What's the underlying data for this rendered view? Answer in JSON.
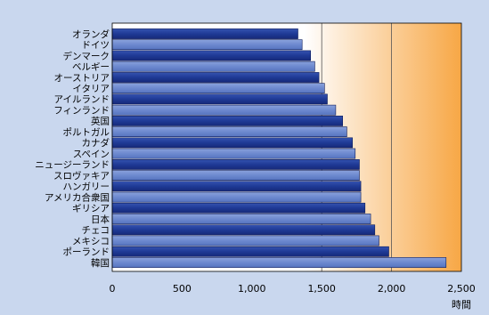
{
  "chart_data": {
    "type": "bar",
    "orientation": "horizontal",
    "categories": [
      "オランダ",
      "ドイツ",
      "デンマーク",
      "ベルギー",
      "オーストリア",
      "イタリア",
      "アイルランド",
      "フィンランド",
      "英国",
      "ポルトガル",
      "カナダ",
      "スペイン",
      "ニュージーランド",
      "スロヴァキア",
      "ハンガリー",
      "アメリカ合衆国",
      "ギリシア",
      "日本",
      "チェコ",
      "メキシコ",
      "ポーランド",
      "韓国"
    ],
    "values": [
      1330,
      1360,
      1420,
      1450,
      1480,
      1520,
      1540,
      1600,
      1650,
      1680,
      1720,
      1740,
      1770,
      1770,
      1780,
      1780,
      1810,
      1850,
      1880,
      1910,
      1980,
      2390
    ],
    "xlim": [
      0,
      2500
    ],
    "xticks": [
      0,
      500,
      1000,
      1500,
      2000,
      2500
    ],
    "xtick_labels": [
      "0",
      "500",
      "1,000",
      "1,500",
      "2,000",
      "2,500"
    ],
    "xlabel": "時間",
    "grid": "vertical at 1500 and 2000",
    "colors": {
      "bar_dark": "#1f3a96",
      "bar_light": "#6d89cf",
      "page_background": "#c9d7ee",
      "plot_gradient_start": "#ffffff",
      "plot_gradient_end": "#f7a745"
    }
  }
}
